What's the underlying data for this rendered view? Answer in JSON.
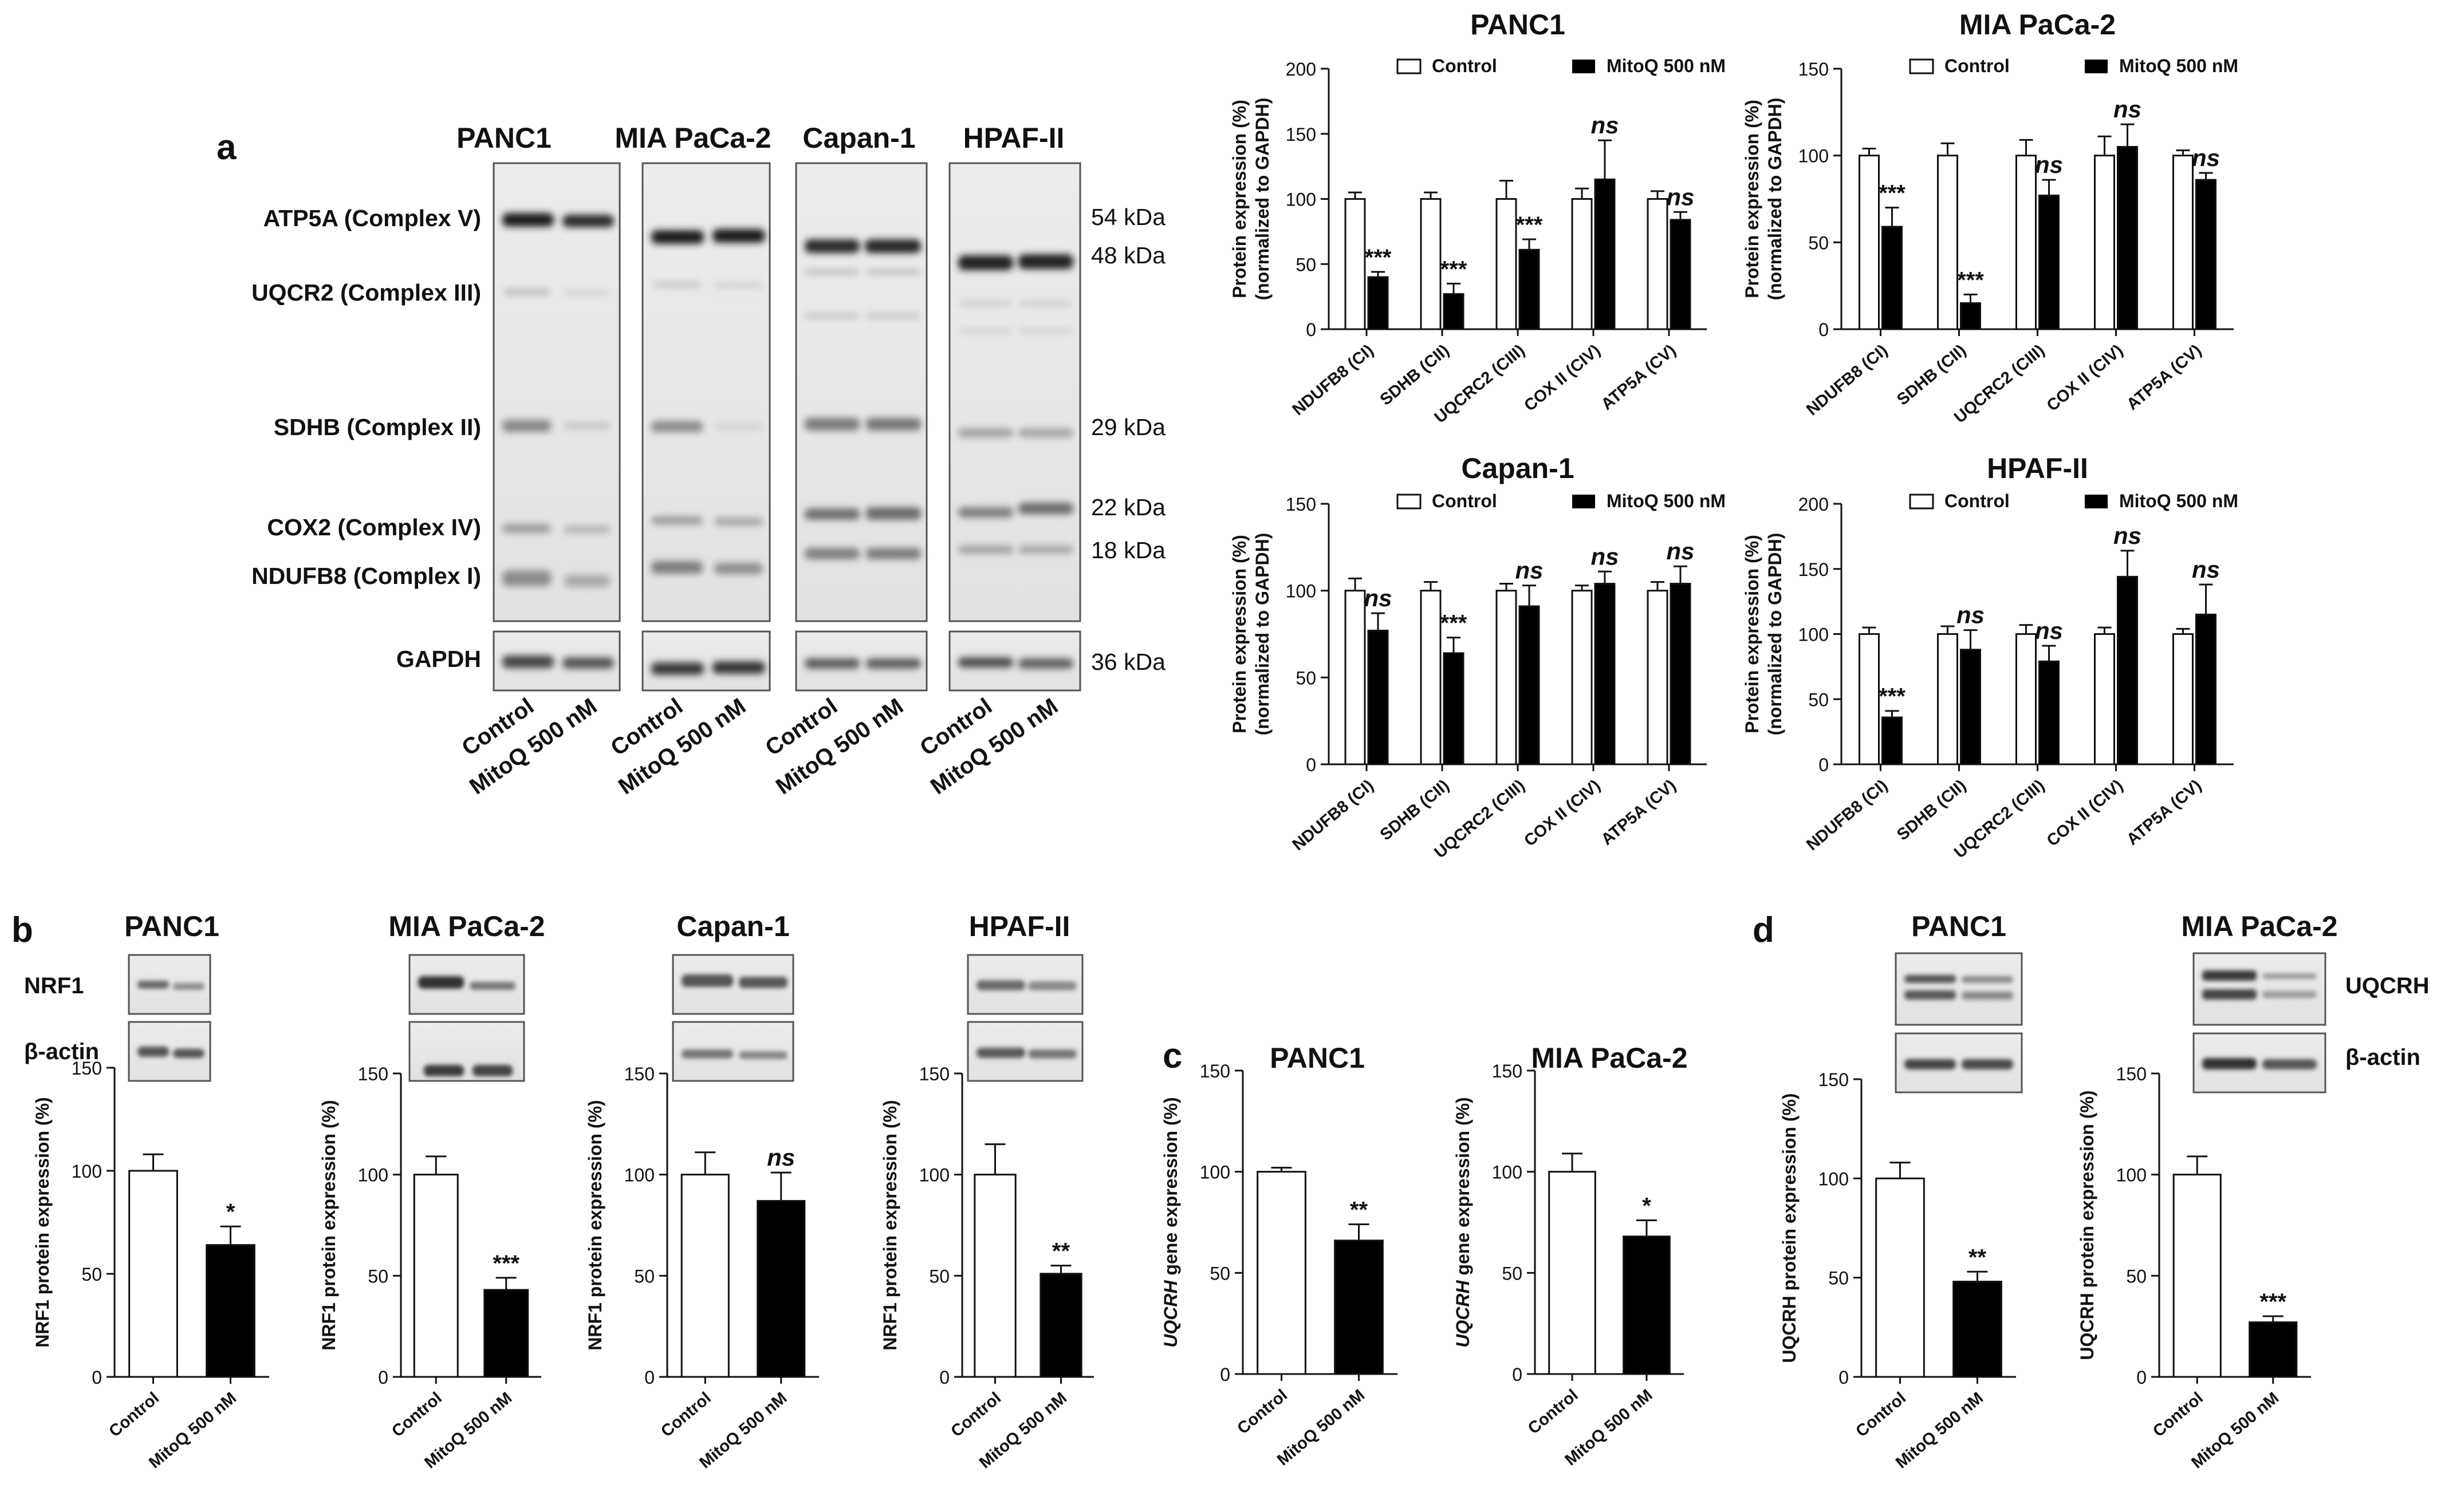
{
  "panels": {
    "a": "a",
    "b": "b",
    "c": "c",
    "d": "d"
  },
  "blot_a": {
    "cell_lines": [
      "PANC1",
      "MIA PaCa-2",
      "Capan-1",
      "HPAF-II"
    ],
    "proteins": [
      "ATP5A (Complex V)",
      "UQCR2 (Complex III)",
      "SDHB (Complex II)",
      "COX2 (Complex IV)",
      "NDUFB8 (Complex I)"
    ],
    "loading": "GAPDH",
    "kda": [
      "54 kDa",
      "48 kDa",
      "29 kDa",
      "22 kDa",
      "18 kDa",
      "36 kDa"
    ],
    "lanes": [
      "Control",
      "MitoQ 500 nM"
    ]
  },
  "legend": {
    "control": "Control",
    "mitoq": "MitoQ 500 nM"
  },
  "chart_data": [
    {
      "panel": "a",
      "type": "bar",
      "title": "PANC1",
      "categories": [
        "NDUFB8 (CI)",
        "SDHB (CII)",
        "UQCRC2 (CIII)",
        "COX II (CIV)",
        "ATP5A (CV)"
      ],
      "series": [
        {
          "name": "Control",
          "values": [
            100,
            100,
            100,
            100,
            100
          ],
          "errors": [
            5,
            5,
            14,
            8,
            6
          ]
        },
        {
          "name": "MitoQ 500 nM",
          "values": [
            40,
            27,
            61,
            115,
            84
          ],
          "errors": [
            4,
            8,
            8,
            30,
            6
          ]
        }
      ],
      "ylabel": "Protein expression (%)",
      "ylabel2": "(normalized to GAPDH)",
      "ylim": [
        0,
        200
      ],
      "yticks": [
        "0",
        "50",
        "100",
        "150",
        "200"
      ],
      "annotations": [
        "***",
        "***",
        "***",
        "ns",
        "ns"
      ]
    },
    {
      "panel": "a",
      "type": "bar",
      "title": "MIA PaCa-2",
      "categories": [
        "NDUFB8 (CI)",
        "SDHB (CII)",
        "UQCRC2 (CIII)",
        "COX II (CIV)",
        "ATP5A (CV)"
      ],
      "series": [
        {
          "name": "Control",
          "values": [
            100,
            100,
            100,
            100,
            100
          ],
          "errors": [
            4,
            7,
            9,
            11,
            3
          ]
        },
        {
          "name": "MitoQ 500 nM",
          "values": [
            59,
            15,
            77,
            105,
            86
          ],
          "errors": [
            11,
            5,
            9,
            13,
            4
          ]
        }
      ],
      "ylabel": "Protein expression (%)",
      "ylabel2": "(normalized to GAPDH)",
      "ylim": [
        0,
        150
      ],
      "yticks": [
        "0",
        "50",
        "100",
        "150"
      ],
      "annotations": [
        "***",
        "***",
        "ns",
        "ns",
        "ns"
      ]
    },
    {
      "panel": "a",
      "type": "bar",
      "title": "Capan-1",
      "categories": [
        "NDUFB8 (CI)",
        "SDHB (CII)",
        "UQCRC2 (CIII)",
        "COX II (CIV)",
        "ATP5A (CV)"
      ],
      "series": [
        {
          "name": "Control",
          "values": [
            100,
            100,
            100,
            100,
            100
          ],
          "errors": [
            7,
            5,
            4,
            3,
            5
          ]
        },
        {
          "name": "MitoQ 500 nM",
          "values": [
            77,
            64,
            91,
            104,
            104
          ],
          "errors": [
            10,
            9,
            12,
            7,
            10
          ]
        }
      ],
      "ylabel": "Protein expression (%)",
      "ylabel2": "(normalized to GAPDH)",
      "ylim": [
        0,
        150
      ],
      "yticks": [
        "0",
        "50",
        "100",
        "150"
      ],
      "annotations": [
        "ns",
        "***",
        "ns",
        "ns",
        "ns"
      ]
    },
    {
      "panel": "a",
      "type": "bar",
      "title": "HPAF-II",
      "categories": [
        "NDUFB8 (CI)",
        "SDHB (CII)",
        "UQCRC2 (CIII)",
        "COX II (CIV)",
        "ATP5A (CV)"
      ],
      "series": [
        {
          "name": "Control",
          "values": [
            100,
            100,
            100,
            100,
            100
          ],
          "errors": [
            5,
            6,
            7,
            5,
            4
          ]
        },
        {
          "name": "MitoQ 500 nM",
          "values": [
            36,
            88,
            79,
            144,
            115
          ],
          "errors": [
            5,
            15,
            12,
            20,
            23
          ]
        }
      ],
      "ylabel": "Protein expression (%)",
      "ylabel2": "(normalized to GAPDH)",
      "ylim": [
        0,
        200
      ],
      "yticks": [
        "0",
        "50",
        "100",
        "150",
        "200"
      ],
      "annotations": [
        "***",
        "ns",
        "ns",
        "ns",
        "ns"
      ]
    },
    {
      "panel": "b",
      "type": "bar",
      "title": "PANC1",
      "categories": [
        "Control",
        "MitoQ 500 nM"
      ],
      "values": [
        100,
        64
      ],
      "errors": [
        8,
        9
      ],
      "ylabel": "NRF1 protein expression (%)",
      "ylim": [
        0,
        150
      ],
      "yticks": [
        "0",
        "50",
        "100",
        "150"
      ],
      "annotations": [
        "",
        "*"
      ]
    },
    {
      "panel": "b",
      "type": "bar",
      "title": "MIA PaCa-2",
      "categories": [
        "Control",
        "MitoQ 500 nM"
      ],
      "values": [
        100,
        43
      ],
      "errors": [
        9,
        6
      ],
      "ylabel": "NRF1 protein expression (%)",
      "ylim": [
        0,
        150
      ],
      "yticks": [
        "0",
        "50",
        "100",
        "150"
      ],
      "annotations": [
        "",
        "***"
      ]
    },
    {
      "panel": "b",
      "type": "bar",
      "title": "Capan-1",
      "categories": [
        "Control",
        "MitoQ 500 nM"
      ],
      "values": [
        100,
        87
      ],
      "errors": [
        11,
        14
      ],
      "ylabel": "NRF1 protein expression (%)",
      "ylim": [
        0,
        150
      ],
      "yticks": [
        "0",
        "50",
        "100",
        "150"
      ],
      "annotations": [
        "",
        "ns"
      ]
    },
    {
      "panel": "b",
      "type": "bar",
      "title": "HPAF-II",
      "categories": [
        "Control",
        "MitoQ 500 nM"
      ],
      "values": [
        100,
        51
      ],
      "errors": [
        15,
        4
      ],
      "ylabel": "NRF1 protein expression (%)",
      "ylim": [
        0,
        150
      ],
      "yticks": [
        "0",
        "50",
        "100",
        "150"
      ],
      "annotations": [
        "",
        "**"
      ]
    },
    {
      "panel": "c",
      "type": "bar",
      "title": "PANC1",
      "categories": [
        "Control",
        "MitoQ 500 nM"
      ],
      "values": [
        100,
        66
      ],
      "errors": [
        2,
        8
      ],
      "ylabel_italic": "UQCRH",
      "ylabel": " gene expression (%)",
      "ylim": [
        0,
        150
      ],
      "yticks": [
        "0",
        "50",
        "100",
        "150"
      ],
      "annotations": [
        "",
        "**"
      ]
    },
    {
      "panel": "c",
      "type": "bar",
      "title": "MIA PaCa-2",
      "categories": [
        "Control",
        "MitoQ 500 nM"
      ],
      "values": [
        100,
        68
      ],
      "errors": [
        9,
        8
      ],
      "ylabel_italic": "UQCRH",
      "ylabel": " gene expression (%)",
      "ylim": [
        0,
        150
      ],
      "yticks": [
        "0",
        "50",
        "100",
        "150"
      ],
      "annotations": [
        "",
        "*"
      ]
    },
    {
      "panel": "d",
      "type": "bar",
      "title": "PANC1",
      "categories": [
        "Control",
        "MitoQ 500 nM"
      ],
      "values": [
        100,
        48
      ],
      "errors": [
        8,
        5
      ],
      "ylabel": "UQCRH protein expression (%)",
      "ylim": [
        0,
        150
      ],
      "yticks": [
        "0",
        "50",
        "100",
        "150"
      ],
      "annotations": [
        "",
        "**"
      ]
    },
    {
      "panel": "d",
      "type": "bar",
      "title": "MIA PaCa-2",
      "categories": [
        "Control",
        "MitoQ 500 nM"
      ],
      "values": [
        100,
        27
      ],
      "errors": [
        9,
        3
      ],
      "ylabel": "UQCRH protein expression (%)",
      "ylim": [
        0,
        150
      ],
      "yticks": [
        "0",
        "50",
        "100",
        "150"
      ],
      "annotations": [
        "",
        "***"
      ]
    }
  ],
  "blot_b": {
    "titles": [
      "PANC1",
      "MIA PaCa-2",
      "Capan-1",
      "HPAF-II"
    ],
    "row_labels": [
      "NRF1",
      "β-actin"
    ]
  },
  "blot_d": {
    "titles": [
      "PANC1",
      "MIA PaCa-2"
    ],
    "row_labels": [
      "UQCRH",
      "β-actin"
    ]
  }
}
